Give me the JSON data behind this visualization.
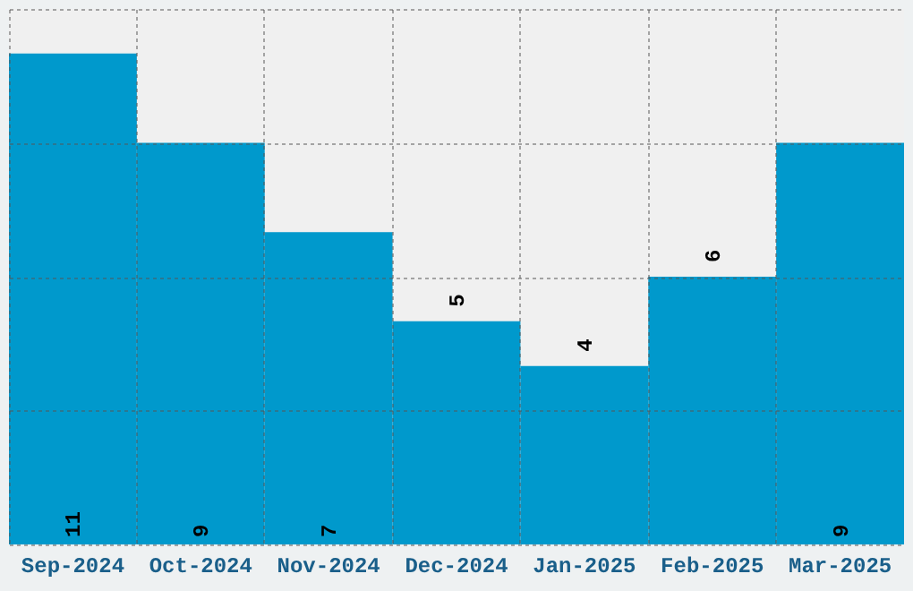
{
  "chart_data": {
    "type": "bar",
    "categories": [
      "Sep-2024",
      "Oct-2024",
      "Nov-2024",
      "Dec-2024",
      "Jan-2025",
      "Feb-2025",
      "Mar-2025"
    ],
    "values": [
      11,
      9,
      7,
      5,
      4,
      6,
      9
    ],
    "color": "#0099cc",
    "ylim": [
      0,
      12
    ],
    "yticks": [
      {
        "value": 0,
        "label": null
      },
      {
        "value": 3,
        "label": null
      },
      {
        "value": 6,
        "label": null
      },
      {
        "value": 9,
        "label": null
      },
      {
        "value": 12,
        "label": null
      }
    ],
    "tick_labels": "x",
    "grid": true,
    "data_labels": true
  }
}
